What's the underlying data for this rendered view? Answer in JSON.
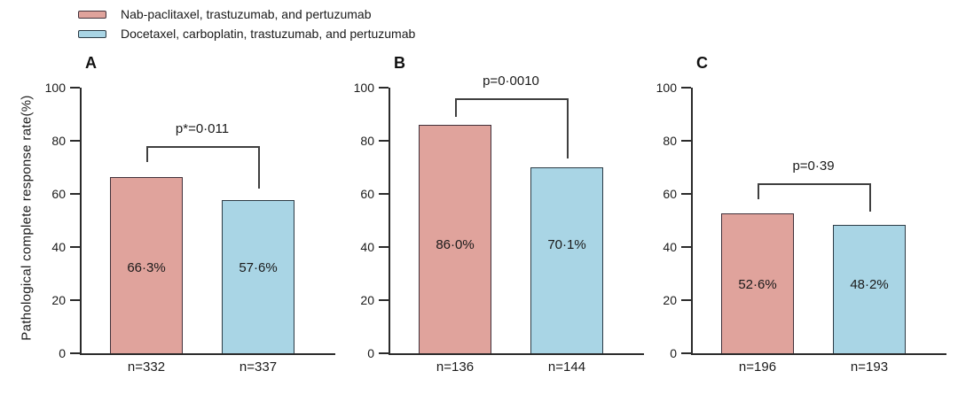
{
  "legend": {
    "entries": [
      {
        "label": "Nab-paclitaxel, trastuzumab, and pertuzumab",
        "color": "#e0a39c",
        "border_color": "#42313a"
      },
      {
        "label": "Docetaxel, carboplatin, trastuzumab, and pertuzumab",
        "color": "#a9d5e5",
        "border_color": "#2c3b45"
      }
    ]
  },
  "y_axis": {
    "label": "Pathological complete response rate(%)",
    "ticks": [
      0,
      20,
      40,
      60,
      80,
      100
    ],
    "range": [
      0,
      100
    ]
  },
  "chart_data": [
    {
      "type": "bar",
      "panel_label": "A",
      "categories": [
        "n=332",
        "n=337"
      ],
      "series": [
        {
          "name": "Nab-paclitaxel, trastuzumab, and pertuzumab",
          "value": 66.3,
          "value_label": "66·3%"
        },
        {
          "name": "Docetaxel, carboplatin, trastuzumab, and pertuzumab",
          "value": 57.6,
          "value_label": "57·6%"
        }
      ],
      "p_value_label": "p*=0·011",
      "significance_bracket": {
        "top": 78,
        "left_drop_to": 72,
        "right_drop_to": 62
      },
      "ylim": [
        0,
        100
      ]
    },
    {
      "type": "bar",
      "panel_label": "B",
      "categories": [
        "n=136",
        "n=144"
      ],
      "series": [
        {
          "name": "Nab-paclitaxel, trastuzumab, and pertuzumab",
          "value": 86.0,
          "value_label": "86·0%"
        },
        {
          "name": "Docetaxel, carboplatin, trastuzumab, and pertuzumab",
          "value": 70.1,
          "value_label": "70·1%"
        }
      ],
      "p_value_label": "p=0·0010",
      "significance_bracket": {
        "top": 96,
        "left_drop_to": 89,
        "right_drop_to": 73.5
      },
      "ylim": [
        0,
        100
      ]
    },
    {
      "type": "bar",
      "panel_label": "C",
      "categories": [
        "n=196",
        "n=193"
      ],
      "series": [
        {
          "name": "Nab-paclitaxel, trastuzumab, and pertuzumab",
          "value": 52.6,
          "value_label": "52·6%"
        },
        {
          "name": "Docetaxel, carboplatin, trastuzumab, and pertuzumab",
          "value": 48.2,
          "value_label": "48·2%"
        }
      ],
      "p_value_label": "p=0·39",
      "significance_bracket": {
        "top": 64,
        "left_drop_to": 58,
        "right_drop_to": 53.5
      },
      "ylim": [
        0,
        100
      ]
    }
  ]
}
